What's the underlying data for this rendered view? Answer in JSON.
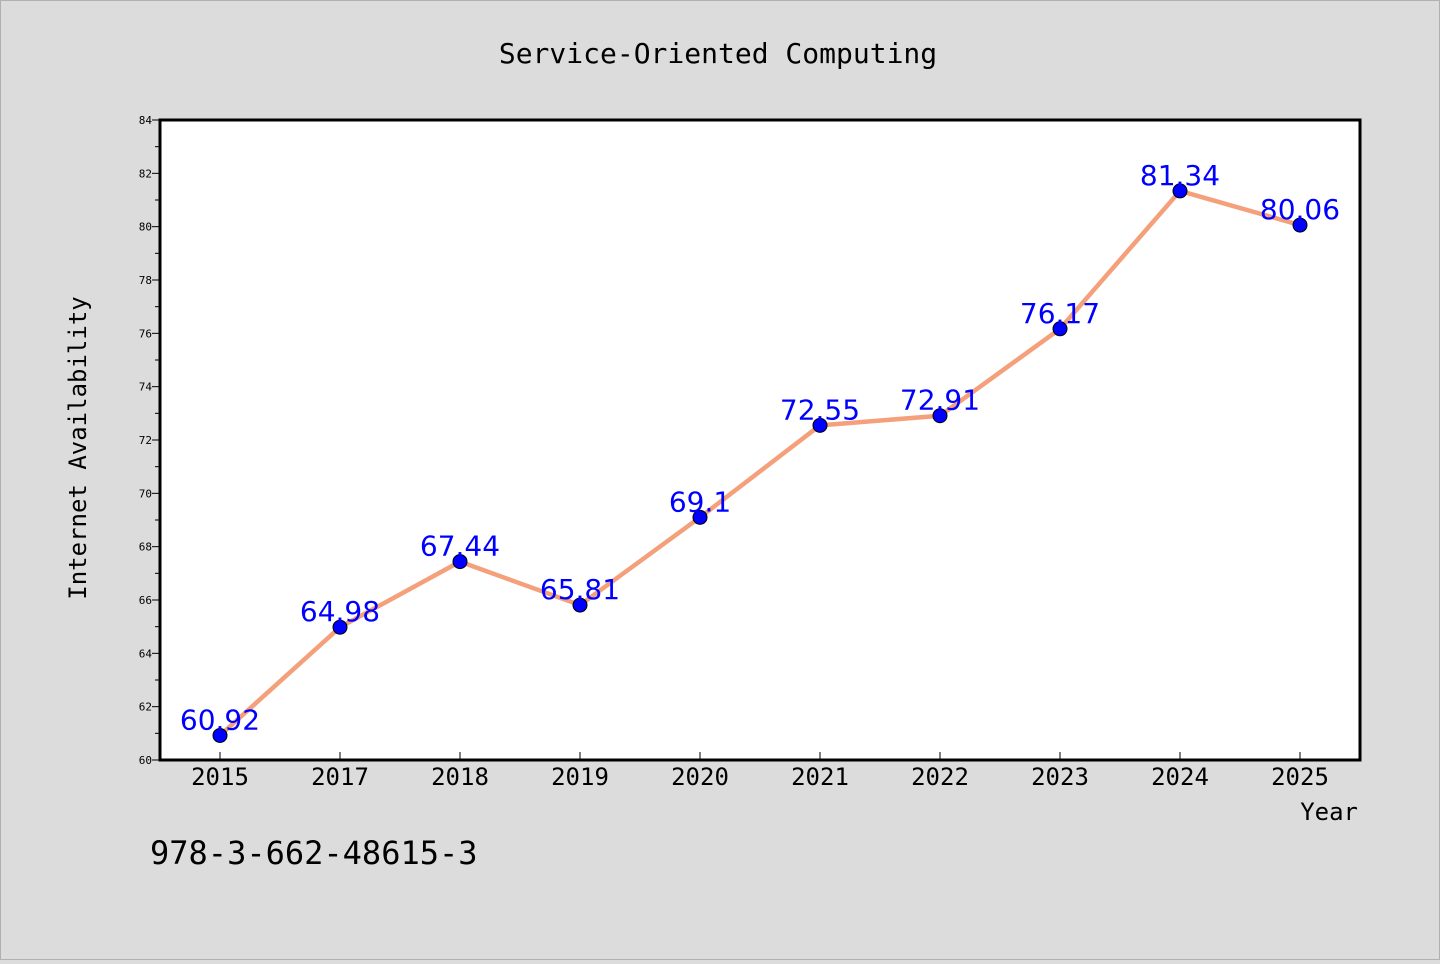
{
  "chart_data": {
    "type": "line",
    "title": "Service-Oriented Computing",
    "xlabel": "Year",
    "ylabel": "Internet Availability",
    "categories": [
      "2015",
      "2017",
      "2018",
      "2019",
      "2020",
      "2021",
      "2022",
      "2023",
      "2024",
      "2025"
    ],
    "series": [
      {
        "values": [
          60.92,
          64.98,
          67.44,
          65.81,
          69.1,
          72.55,
          72.91,
          76.17,
          81.34,
          80.06
        ],
        "data_labels": [
          "60.92",
          "64.98",
          "67.44",
          "65.81",
          "69.1",
          "72.55",
          "72.91",
          "76.17",
          "81.34",
          "80.06"
        ]
      }
    ],
    "ylim": [
      60,
      84
    ],
    "y_ticks": [
      "60",
      "62",
      "64",
      "66",
      "68",
      "70",
      "72",
      "74",
      "76",
      "78",
      "80",
      "82",
      "84"
    ],
    "grid": false,
    "legend": "none",
    "colors": {
      "line": "#f4a07a",
      "marker": "#0000ff",
      "data_label": "#0000ff",
      "background": "#dcdcdc",
      "plot_background": "#ffffff"
    }
  },
  "annotation": {
    "isbn": "978-3-662-48615-3"
  }
}
